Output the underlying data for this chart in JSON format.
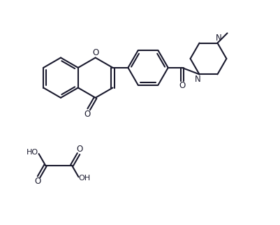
{
  "bg_color": "#ffffff",
  "line_color": "#1a1a2e",
  "line_width": 1.5,
  "figsize": [
    4.01,
    3.22
  ],
  "dpi": 100,
  "xlim": [
    0,
    10
  ],
  "ylim": [
    0,
    8
  ]
}
